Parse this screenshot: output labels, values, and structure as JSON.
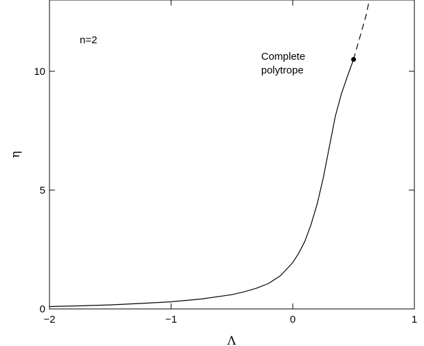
{
  "chart_data": {
    "type": "line",
    "xlabel": "Λ",
    "ylabel": "η",
    "xlim": [
      -2,
      1
    ],
    "ylim": [
      0,
      13
    ],
    "x_ticks": [
      -2,
      -1,
      0,
      1
    ],
    "x_tick_labels": [
      "−2",
      "−1",
      "0",
      "1"
    ],
    "y_ticks": [
      0,
      5,
      10
    ],
    "y_tick_labels": [
      "0",
      "5",
      "10"
    ],
    "grid": false,
    "legend": "none",
    "series": [
      {
        "style": "solid",
        "x": [
          -2.0,
          -1.75,
          -1.5,
          -1.25,
          -1.0,
          -0.75,
          -0.5,
          -0.4,
          -0.3,
          -0.2,
          -0.1,
          0.0,
          0.05,
          0.1,
          0.15,
          0.2,
          0.25,
          0.3,
          0.35,
          0.4,
          0.45,
          0.5
        ],
        "y": [
          0.1,
          0.13,
          0.17,
          0.23,
          0.3,
          0.42,
          0.6,
          0.72,
          0.87,
          1.07,
          1.4,
          1.95,
          2.35,
          2.85,
          3.55,
          4.4,
          5.5,
          6.8,
          8.1,
          9.05,
          9.8,
          10.5
        ]
      },
      {
        "style": "dashed",
        "x": [
          0.5,
          0.55,
          0.6,
          0.63
        ],
        "y": [
          10.5,
          11.4,
          12.3,
          13.0
        ]
      }
    ],
    "points": [
      {
        "x": 0.5,
        "y": 10.5
      }
    ],
    "annotations": [
      {
        "text": "n=2"
      },
      {
        "text": "Complete"
      },
      {
        "text": "polytrope"
      }
    ]
  }
}
